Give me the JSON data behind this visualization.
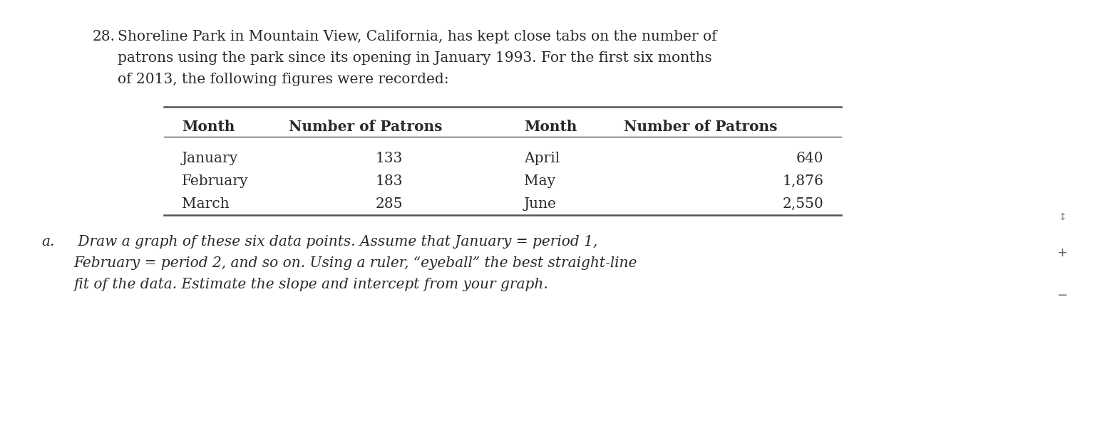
{
  "bg_color": "#ffffff",
  "problem_number": "28.",
  "problem_text_line1": "Shoreline Park in Mountain View, California, has kept close tabs on the number of",
  "problem_text_line2": "patrons using the park since its opening in January 1993. For the first six months",
  "problem_text_line3": "of 2013, the following figures were recorded:",
  "table_headers": [
    "Month",
    "Number of Patrons",
    "Month",
    "Number of Patrons"
  ],
  "col1_months": [
    "January",
    "February",
    "March"
  ],
  "col1_patrons": [
    "133",
    "183",
    "285"
  ],
  "col2_months": [
    "April",
    "May",
    "June"
  ],
  "col2_patrons": [
    "640",
    "1,876",
    "2,550"
  ],
  "part_a_italic": "a.",
  "part_a_line1": " Draw a graph of these six data points. Assume that January = period 1,",
  "part_a_line2": "February = period 2, and so on. Using a ruler, “eyeball” the best straight-line",
  "part_a_line3": "fit of the data. Estimate the slope and intercept from your graph.",
  "font_family": "serif",
  "fontsize": 14.5,
  "text_color": "#2a2a2a"
}
